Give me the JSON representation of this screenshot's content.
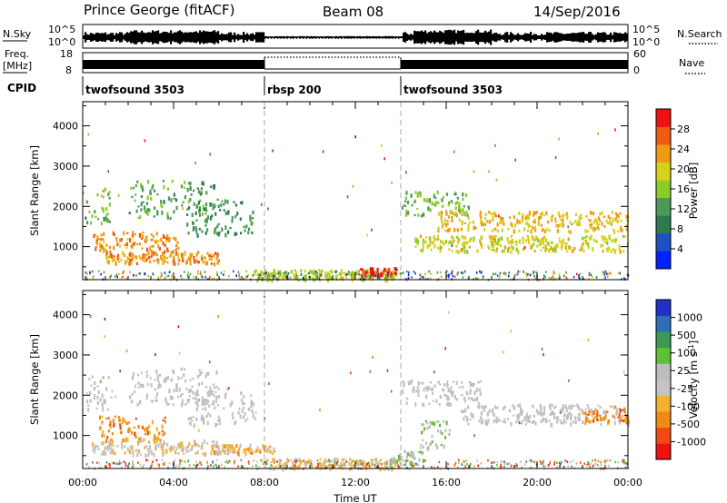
{
  "header": {
    "radar": "Prince George (fitACF)",
    "beam": "Beam 08",
    "date": "14/Sep/2016"
  },
  "top_panels": {
    "nsky": {
      "label": "N.Sky",
      "ticks": [
        "10^5",
        "10^0"
      ],
      "right_label": "N.Search",
      "right_ticks": [
        "10^5",
        "10^0"
      ]
    },
    "freq": {
      "label_line1": "Freq.",
      "label_line2": "[MHz]",
      "ticks": [
        "18",
        "8"
      ],
      "right_label": "Nave",
      "right_ticks": [
        "60",
        "0"
      ]
    },
    "cpid": {
      "label": "CPID",
      "segments": [
        {
          "name": "twofsound 3503",
          "start": 0,
          "end": 8
        },
        {
          "name": "rbsp 200",
          "start": 8,
          "end": 14
        },
        {
          "name": "twofsound 3503",
          "start": 14,
          "end": 24
        }
      ]
    }
  },
  "colors": {
    "power_scale": [
      "#0022ff",
      "#1f4fc4",
      "#2e7a4f",
      "#4a9a55",
      "#8ccc2a",
      "#d6d21a",
      "#f09a12",
      "#f05a10",
      "#ee1111"
    ],
    "velocity_scale": [
      "#ee1111",
      "#f04a10",
      "#f08a12",
      "#f4b030",
      "#c4c4c4",
      "#bdbdbd",
      "#5cc235",
      "#3a9a55",
      "#2e6eb4",
      "#2030c8"
    ]
  },
  "chart_data": [
    {
      "type": "heatmap",
      "name": "Power",
      "ylabel": "Slant Range [km]",
      "xlabel": "Time UT",
      "x_ticks": [
        "00:00",
        "04:00",
        "08:00",
        "12:00",
        "16:00",
        "20:00",
        "00:00"
      ],
      "y_ticks": [
        "1000",
        "2000",
        "3000",
        "4000"
      ],
      "xlim": [
        0,
        24
      ],
      "ylim": [
        180,
        4600
      ],
      "colorbar": {
        "label": "Power [dB]",
        "ticks": [
          "4",
          "8",
          "12",
          "16",
          "20",
          "24",
          "28"
        ],
        "range": [
          0,
          30
        ]
      },
      "features": [
        {
          "t": [
            0.1,
            1.2
          ],
          "r": [
            1600,
            2500
          ],
          "value": 14
        },
        {
          "t": [
            0.4,
            4.2
          ],
          "r": [
            900,
            1400
          ],
          "value": 22
        },
        {
          "t": [
            1.0,
            6.0
          ],
          "r": [
            600,
            900
          ],
          "value": 22
        },
        {
          "t": [
            2.0,
            5.8
          ],
          "r": [
            1700,
            2700
          ],
          "value": 12
        },
        {
          "t": [
            4.5,
            7.5
          ],
          "r": [
            1300,
            2200
          ],
          "value": 10
        },
        {
          "t": [
            7.5,
            13.8
          ],
          "r": [
            200,
            450
          ],
          "value": 16
        },
        {
          "t": [
            12.2,
            13.8
          ],
          "r": [
            300,
            500
          ],
          "value": 28
        },
        {
          "t": [
            14.0,
            17.0
          ],
          "r": [
            1800,
            2400
          ],
          "value": 14
        },
        {
          "t": [
            14.6,
            24.0
          ],
          "r": [
            900,
            1300
          ],
          "value": 18
        },
        {
          "t": [
            15.5,
            24.0
          ],
          "r": [
            1400,
            1900
          ],
          "value": 20
        }
      ]
    },
    {
      "type": "heatmap",
      "name": "Velocity",
      "ylabel": "Slant Range [km]",
      "xlabel": "Time UT",
      "x_ticks": [
        "00:00",
        "04:00",
        "08:00",
        "12:00",
        "16:00",
        "20:00",
        "00:00"
      ],
      "y_ticks": [
        "1000",
        "2000",
        "3000",
        "4000"
      ],
      "xlim": [
        0,
        24
      ],
      "ylim": [
        180,
        4600
      ],
      "colorbar": {
        "label": "Velocity [m s^-1]",
        "ticks": [
          "1000",
          "500",
          "100",
          "25",
          "-25",
          "-100",
          "-500",
          "-1000"
        ],
        "range": [
          -1000,
          1000
        ]
      },
      "features": [
        {
          "t": [
            0.1,
            1.3
          ],
          "r": [
            1600,
            2500
          ],
          "value": 10
        },
        {
          "t": [
            0.6,
            3.6
          ],
          "r": [
            900,
            1500
          ],
          "value": -450
        },
        {
          "t": [
            0.4,
            6.0
          ],
          "r": [
            550,
            900
          ],
          "value": -160
        },
        {
          "t": [
            2.0,
            6.0
          ],
          "r": [
            1800,
            2700
          ],
          "value": 10
        },
        {
          "t": [
            4.5,
            7.6
          ],
          "r": [
            1300,
            2200
          ],
          "value": 0
        },
        {
          "t": [
            5.6,
            8.4
          ],
          "r": [
            580,
            800
          ],
          "value": -300
        },
        {
          "t": [
            8.0,
            14.0
          ],
          "r": [
            200,
            450
          ],
          "value": -200
        },
        {
          "t": [
            13.5,
            15.0
          ],
          "r": [
            300,
            650
          ],
          "value": 90
        },
        {
          "t": [
            14.0,
            17.5
          ],
          "r": [
            1800,
            2400
          ],
          "value": 5
        },
        {
          "t": [
            14.8,
            16.2
          ],
          "r": [
            700,
            1400
          ],
          "value": 180
        },
        {
          "t": [
            16.5,
            24.0
          ],
          "r": [
            1300,
            1800
          ],
          "value": 5
        },
        {
          "t": [
            22.0,
            24.0
          ],
          "r": [
            1350,
            1750
          ],
          "value": -500
        }
      ]
    }
  ]
}
